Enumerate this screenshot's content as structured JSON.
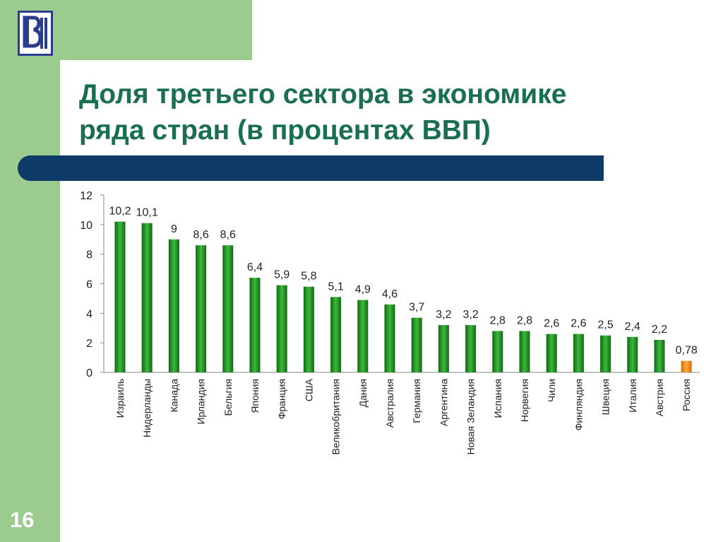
{
  "slide": {
    "title_line1": "Доля третьего сектора в экономике",
    "title_line2": "ряда стран (в процентах ВВП)",
    "number": "16",
    "colors": {
      "band": "#9ccb8f",
      "title": "#1a6e51",
      "title_bar": "#0d3a67",
      "logo": "#2a3d8f"
    }
  },
  "chart_data": {
    "type": "bar",
    "categories": [
      "Израиль",
      "Нидерланды",
      "Канада",
      "Ирландия",
      "Бельгия",
      "Япония",
      "Франция",
      "США",
      "Великобритания",
      "Дания",
      "Австралия",
      "Германия",
      "Аргентина",
      "Новая Зеландия",
      "Испания",
      "Норвегия",
      "Чили",
      "Финляндия",
      "Швеция",
      "Италия",
      "Австрия",
      "Россия"
    ],
    "values": [
      10.2,
      10.1,
      9,
      8.6,
      8.6,
      6.4,
      5.9,
      5.8,
      5.1,
      4.9,
      4.6,
      3.7,
      3.2,
      3.2,
      2.8,
      2.8,
      2.6,
      2.6,
      2.5,
      2.4,
      2.2,
      0.78
    ],
    "value_labels": [
      "10,2",
      "10,1",
      "9",
      "8,6",
      "8,6",
      "6,4",
      "5,9",
      "5,8",
      "5,1",
      "4,9",
      "4,6",
      "3,7",
      "3,2",
      "3,2",
      "2,8",
      "2,8",
      "2,6",
      "2,6",
      "2,5",
      "2,4",
      "2,2",
      "0,78"
    ],
    "y_ticks": [
      "0",
      "2",
      "4",
      "6",
      "8",
      "10",
      "12"
    ],
    "ylim": [
      0,
      12
    ],
    "xlabel": "",
    "ylabel": "",
    "grid": false,
    "legend": "none",
    "colors": {
      "bar": "#1e8b1e",
      "highlight_bar": "#f28a12",
      "highlight_category": "Россия"
    }
  }
}
